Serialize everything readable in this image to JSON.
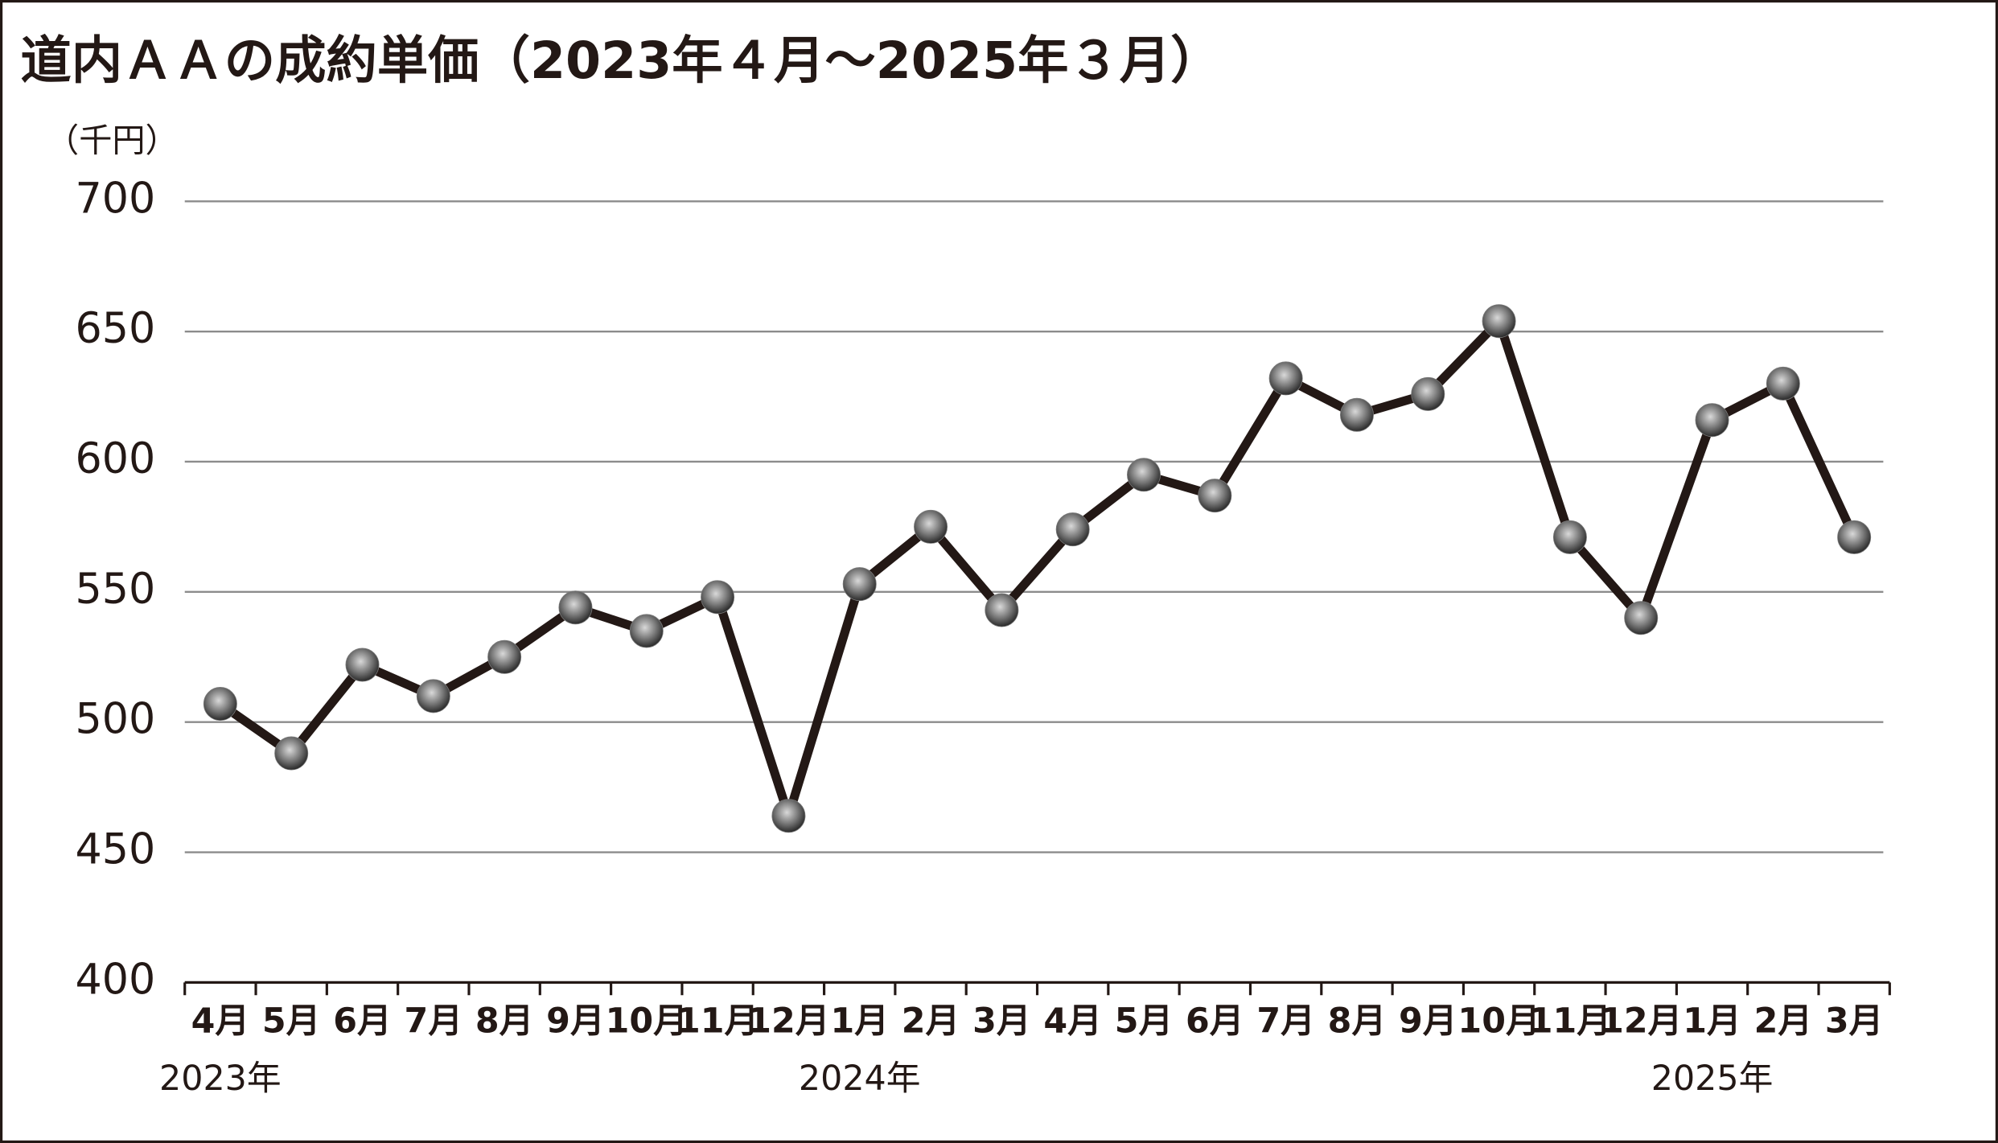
{
  "chart_data": {
    "type": "line",
    "title": "道内ＡＡの成約単価（2023年４月～2025年３月）",
    "y_label": "（千円）",
    "categories": [
      "4月",
      "5月",
      "6月",
      "7月",
      "8月",
      "9月",
      "10月",
      "11月",
      "12月",
      "1月",
      "2月",
      "3月",
      "4月",
      "5月",
      "6月",
      "7月",
      "8月",
      "9月",
      "10月",
      "11月",
      "12月",
      "1月",
      "2月",
      "3月"
    ],
    "years": [
      "2023年",
      null,
      null,
      null,
      null,
      null,
      null,
      null,
      null,
      "2024年",
      null,
      null,
      null,
      null,
      null,
      null,
      null,
      null,
      null,
      null,
      null,
      "2025年",
      null,
      null
    ],
    "values": [
      507,
      488,
      522,
      510,
      525,
      544,
      535,
      548,
      464,
      553,
      575,
      543,
      574,
      595,
      587,
      632,
      618,
      626,
      654,
      571,
      540,
      616,
      630,
      571
    ],
    "color": "#231815",
    "marker_color": "#7a7a7a",
    "ylim": [
      400,
      700
    ],
    "yticks": [
      400,
      450,
      500,
      550,
      600,
      650,
      700
    ],
    "grid": true
  }
}
